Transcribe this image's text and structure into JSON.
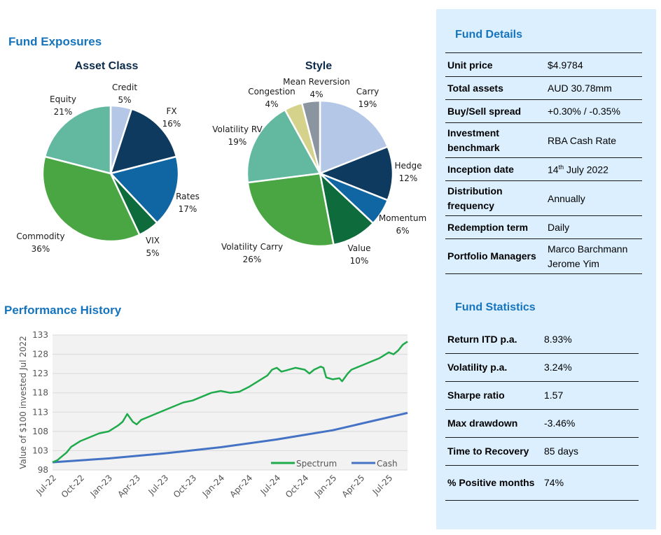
{
  "headings": {
    "fund_exposures": "Fund Exposures",
    "asset_class": "Asset Class",
    "style": "Style",
    "performance_history": "Performance History"
  },
  "chart_data": [
    {
      "type": "pie",
      "title": "Asset Class",
      "slices": [
        {
          "name": "Credit",
          "label": "5%",
          "value": 5,
          "color": "#b4c7e7"
        },
        {
          "name": "FX",
          "label": "16%",
          "value": 16,
          "color": "#0e3a5f"
        },
        {
          "name": "Rates",
          "label": "17%",
          "value": 17,
          "color": "#0f66a3"
        },
        {
          "name": "VIX",
          "label": "5%",
          "value": 5,
          "color": "#0d6b3c"
        },
        {
          "name": "Commodity",
          "label": "36%",
          "value": 36,
          "color": "#4aa643"
        },
        {
          "name": "Equity",
          "label": "21%",
          "value": 21,
          "color": "#63b9a0"
        }
      ]
    },
    {
      "type": "pie",
      "title": "Style",
      "slices": [
        {
          "name": "Carry",
          "label": "19%",
          "value": 19,
          "color": "#b4c7e7"
        },
        {
          "name": "Hedge",
          "label": "12%",
          "value": 12,
          "color": "#0e3a5f"
        },
        {
          "name": "Momentum",
          "label": "6%",
          "value": 6,
          "color": "#0f66a3"
        },
        {
          "name": "Value",
          "label": "10%",
          "value": 10,
          "color": "#0d6b3c"
        },
        {
          "name": "Volatility Carry",
          "label": "26%",
          "value": 26,
          "color": "#4aa643"
        },
        {
          "name": "Volatility RV",
          "label": "19%",
          "value": 19,
          "color": "#63b9a0"
        },
        {
          "name": "Congestion",
          "label": "4%",
          "value": 4,
          "color": "#d5d38b"
        },
        {
          "name": "Mean Reversion",
          "label": "4%",
          "value": 4,
          "color": "#8b959f"
        }
      ]
    },
    {
      "type": "line",
      "title": "Performance History",
      "ylabel": "Value of $100 invested Jul 2022",
      "ylim": [
        98,
        133
      ],
      "yticks": [
        "98",
        "103",
        "108",
        "113",
        "118",
        "123",
        "128",
        "133"
      ],
      "xticks": [
        "Jul-22",
        "Oct-22",
        "Jan-23",
        "Apr-23",
        "Jul-23",
        "Oct-23",
        "Jan-24",
        "Apr-24",
        "Jul-24",
        "Oct-24",
        "Jan-25",
        "Apr-25",
        "Jul-25"
      ],
      "x_range_months": [
        0,
        38
      ],
      "series": [
        {
          "name": "Spectrum",
          "color": "#1faa4b",
          "points": [
            [
              0,
              100
            ],
            [
              0.5,
              100.5
            ],
            [
              1,
              101.5
            ],
            [
              1.5,
              102.5
            ],
            [
              2,
              104
            ],
            [
              3,
              105.5
            ],
            [
              4,
              106.5
            ],
            [
              5,
              107.5
            ],
            [
              6,
              108
            ],
            [
              7,
              109.5
            ],
            [
              7.5,
              110.5
            ],
            [
              8,
              112.5
            ],
            [
              8.6,
              110.5
            ],
            [
              9,
              109.8
            ],
            [
              9.5,
              111
            ],
            [
              10,
              111.5
            ],
            [
              11,
              112.5
            ],
            [
              12,
              113.5
            ],
            [
              13,
              114.5
            ],
            [
              14,
              115.5
            ],
            [
              15,
              116
            ],
            [
              16,
              117
            ],
            [
              17,
              118
            ],
            [
              18,
              118.5
            ],
            [
              19,
              118
            ],
            [
              20,
              118.3
            ],
            [
              21,
              119.5
            ],
            [
              22,
              121
            ],
            [
              23,
              122.5
            ],
            [
              23.5,
              124
            ],
            [
              24,
              124.5
            ],
            [
              24.5,
              123.5
            ],
            [
              25,
              123.8
            ],
            [
              26,
              124.5
            ],
            [
              27,
              124
            ],
            [
              27.5,
              123
            ],
            [
              28,
              124
            ],
            [
              28.7,
              124.8
            ],
            [
              29,
              124.5
            ],
            [
              29.3,
              122
            ],
            [
              30,
              121.5
            ],
            [
              30.7,
              121.8
            ],
            [
              31,
              121
            ],
            [
              31.6,
              123
            ],
            [
              32,
              124
            ],
            [
              33,
              125
            ],
            [
              34,
              126
            ],
            [
              35,
              127
            ],
            [
              36,
              128.5
            ],
            [
              36.5,
              128
            ],
            [
              37,
              129
            ],
            [
              37.5,
              130.5
            ],
            [
              38,
              131.3
            ]
          ]
        },
        {
          "name": "Cash",
          "color": "#4472c4",
          "points": [
            [
              0,
              100
            ],
            [
              6,
              101
            ],
            [
              12,
              102.3
            ],
            [
              18,
              103.9
            ],
            [
              24,
              105.9
            ],
            [
              30,
              108.3
            ],
            [
              38,
              112.8
            ]
          ]
        }
      ]
    }
  ],
  "fund_details": {
    "title": "Fund Details",
    "rows": [
      {
        "label": "Unit price",
        "value": "$4.9784"
      },
      {
        "label": "Total assets",
        "value": "AUD 30.78mm"
      },
      {
        "label": "Buy/Sell spread",
        "value": "+0.30% / -0.35%"
      },
      {
        "label": "Investment benchmark",
        "value": "RBA Cash Rate"
      },
      {
        "label": "Inception date",
        "value_day": "14",
        "value_suffix": "th",
        "value_rest": " July 2022"
      },
      {
        "label": "Distribution frequency",
        "value": "Annually"
      },
      {
        "label": "Redemption term",
        "value": "Daily"
      },
      {
        "label": "Portfolio Managers",
        "value_lines": [
          "Marco Barchmann",
          "Jerome Yim"
        ]
      }
    ]
  },
  "fund_statistics": {
    "title": "Fund Statistics",
    "rows": [
      {
        "label": "Return ITD p.a.",
        "value": "8.93%"
      },
      {
        "label": "Volatility p.a.",
        "value": "3.24%"
      },
      {
        "label": "Sharpe ratio",
        "value": "1.57"
      },
      {
        "label": "Max drawdown",
        "value": "-3.46%"
      },
      {
        "label": "Time to Recovery",
        "value": "85 days"
      },
      {
        "label": "% Positive months",
        "value": "74%"
      }
    ]
  }
}
